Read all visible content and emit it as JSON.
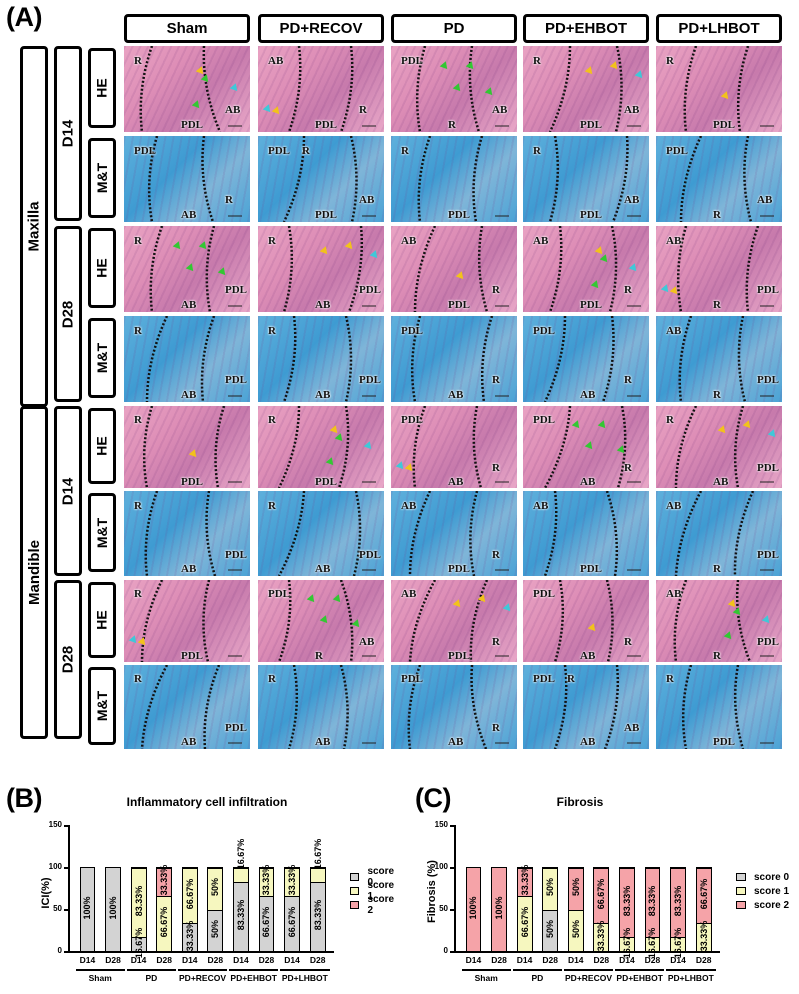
{
  "figure": {
    "panel_a": {
      "letter": "(A)",
      "columns": [
        "Sham",
        "PD+RECOV",
        "PD",
        "PD+EHBOT",
        "PD+LHBOT"
      ],
      "jaws": [
        "Maxilla",
        "Mandible"
      ],
      "days": [
        "D14",
        "D28",
        "D14",
        "D28"
      ],
      "stains": [
        "HE",
        "M&T",
        "HE",
        "M&T",
        "HE",
        "M&T",
        "HE",
        "M&T"
      ],
      "tile_labels": [
        [
          [
            "R",
            "PDL",
            "AB"
          ],
          [
            "AB",
            "PDL",
            "R"
          ],
          [
            "PDL",
            "R",
            "AB"
          ],
          [
            "R",
            "PDL",
            "AB"
          ],
          [
            "R",
            "PDL"
          ]
        ],
        [
          [
            "PDL",
            "AB",
            "R"
          ],
          [
            "PDL",
            "PDL",
            "AB",
            "R"
          ],
          [
            "R",
            "PDL"
          ],
          [
            "R",
            "PDL",
            "AB"
          ],
          [
            "PDL",
            "R",
            "AB"
          ]
        ],
        [
          [
            "R",
            "AB",
            "PDL"
          ],
          [
            "R",
            "AB",
            "PDL"
          ],
          [
            "AB",
            "PDL",
            "R"
          ],
          [
            "AB",
            "PDL",
            "R"
          ],
          [
            "AB",
            "R",
            "PDL"
          ]
        ],
        [
          [
            "R",
            "AB",
            "PDL"
          ],
          [
            "R",
            "AB",
            "PDL"
          ],
          [
            "PDL",
            "AB",
            "R"
          ],
          [
            "PDL",
            "AB",
            "R"
          ],
          [
            "AB",
            "R",
            "PDL"
          ]
        ],
        [
          [
            "R",
            "PDL"
          ],
          [
            "R",
            "PDL"
          ],
          [
            "PDL",
            "AB",
            "R"
          ],
          [
            "PDL",
            "AB",
            "R"
          ],
          [
            "R",
            "AB",
            "PDL"
          ]
        ],
        [
          [
            "R",
            "AB",
            "PDL"
          ],
          [
            "R",
            "AB",
            "PDL"
          ],
          [
            "AB",
            "PDL",
            "R"
          ],
          [
            "AB",
            "PDL"
          ],
          [
            "AB",
            "R",
            "PDL"
          ]
        ],
        [
          [
            "R",
            "PDL"
          ],
          [
            "PDL",
            "R",
            "AB"
          ],
          [
            "AB",
            "PDL",
            "R"
          ],
          [
            "PDL",
            "AB",
            "R"
          ],
          [
            "AB",
            "R",
            "PDL"
          ]
        ],
        [
          [
            "R",
            "AB",
            "PDL"
          ],
          [
            "R",
            "AB"
          ],
          [
            "PDL",
            "AB",
            "R"
          ],
          [
            "PDL",
            "AB",
            "AB",
            "R"
          ],
          [
            "R",
            "PDL"
          ]
        ]
      ],
      "arrow_colors": {
        "yellow": "#f2c21b",
        "green": "#33c733",
        "cyan": "#3fc8d8"
      }
    },
    "panel_b": {
      "letter": "(B)"
    },
    "panel_c": {
      "letter": "(C)"
    }
  },
  "chart_data": [
    {
      "type": "bar",
      "stacked": true,
      "title": "Inflammatory cell infiltration",
      "xlabel": "",
      "ylabel": "ICI(%)",
      "ylim": [
        0,
        150
      ],
      "yticks": [
        0,
        50,
        100,
        150
      ],
      "groups": [
        "Sham",
        "PD",
        "PD+RECOV",
        "PD+EHBOT",
        "PD+LHBOT"
      ],
      "categories": [
        "D14",
        "D28",
        "D14",
        "D28",
        "D14",
        "D28",
        "D14",
        "D28",
        "D14",
        "D28"
      ],
      "series": [
        {
          "name": "score 0",
          "color": "#d3d3d3",
          "values": [
            100,
            100,
            16.67,
            0,
            33.33,
            50,
            83.33,
            66.67,
            66.67,
            83.33
          ]
        },
        {
          "name": "score 1",
          "color": "#f6f7bf",
          "values": [
            0,
            0,
            83.33,
            66.67,
            66.67,
            50,
            16.67,
            33.33,
            33.33,
            16.67
          ]
        },
        {
          "name": "score 2",
          "color": "#f5a3a8",
          "values": [
            0,
            0,
            0,
            33.33,
            0,
            0,
            0,
            0,
            0,
            0
          ]
        }
      ],
      "value_labels": [
        [
          "100%"
        ],
        [
          "100%"
        ],
        [
          "16.67%",
          "83.33%"
        ],
        [
          "66.67%",
          "33.33%"
        ],
        [
          "33.33%",
          "66.67%"
        ],
        [
          "50%",
          "50%"
        ],
        [
          "83.33%",
          "16.67%"
        ],
        [
          "66.67%",
          "33.33%"
        ],
        [
          "66.67%",
          "33.33%"
        ],
        [
          "83.33%",
          "16.67%"
        ]
      ],
      "legend": [
        "score 0",
        "score 1",
        "score 2"
      ],
      "legend_position": "right",
      "grid": false
    },
    {
      "type": "bar",
      "stacked": true,
      "title": "Fibrosis",
      "xlabel": "",
      "ylabel": "Fibrosis (%)",
      "ylim": [
        0,
        150
      ],
      "yticks": [
        0,
        50,
        100,
        150
      ],
      "groups": [
        "Sham",
        "PD",
        "PD+RECOV",
        "PD+EHBOT",
        "PD+LHBOT"
      ],
      "categories": [
        "D14",
        "D28",
        "D14",
        "D28",
        "D14",
        "D28",
        "D14",
        "D28",
        "D14",
        "D28"
      ],
      "series": [
        {
          "name": "score 0",
          "color": "#d3d3d3",
          "values": [
            0,
            0,
            0,
            50,
            0,
            0,
            0,
            0,
            0,
            0
          ]
        },
        {
          "name": "score 1",
          "color": "#f6f7bf",
          "values": [
            0,
            0,
            66.67,
            50,
            50,
            33.33,
            16.67,
            16.67,
            16.67,
            33.33
          ]
        },
        {
          "name": "score 2",
          "color": "#f5a3a8",
          "values": [
            100,
            100,
            33.33,
            0,
            50,
            66.67,
            83.33,
            83.33,
            83.33,
            66.67
          ]
        }
      ],
      "value_labels": [
        [
          "100%"
        ],
        [
          "100%"
        ],
        [
          "66.67%",
          "33.33%"
        ],
        [
          "50%",
          "50%"
        ],
        [
          "50%",
          "50%"
        ],
        [
          "33.33%",
          "66.67%"
        ],
        [
          "16.67%",
          "83.33%"
        ],
        [
          "16.67%",
          "83.33%"
        ],
        [
          "16.67%",
          "83.33%"
        ],
        [
          "33.33%",
          "66.67%"
        ]
      ],
      "legend": [
        "score 0",
        "score 1",
        "score 2"
      ],
      "legend_position": "right",
      "grid": false
    }
  ]
}
